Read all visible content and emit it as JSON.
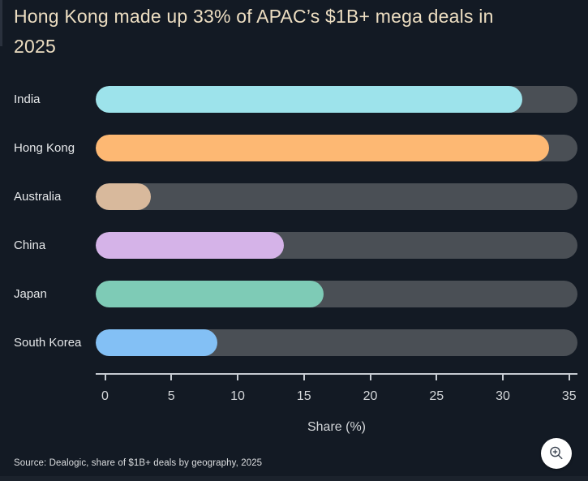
{
  "page": {
    "background": "#131a24",
    "title": "Hong Kong made up 33% of APAC’s $1B+ mega deals in 2025",
    "title_lines": [
      "Hong Kong made up 33% of APAC’s $1B+ mega deals in",
      "2025"
    ],
    "title_color": "#ecddc1",
    "source": "Source: Dealogic, share of $1B+ deals by geography, 2025"
  },
  "chart_data": {
    "type": "bar",
    "orientation": "horizontal",
    "title": "Hong Kong made up 33% of APAC’s $1B+ mega deals in 2025",
    "categories": [
      "India",
      "Hong Kong",
      "Australia",
      "China",
      "Japan",
      "South Korea"
    ],
    "values": [
      31,
      33,
      3,
      13,
      16,
      8
    ],
    "bar_colors": [
      "#9de3eb",
      "#fdb873",
      "#d8b99c",
      "#d5b3e8",
      "#7ecbb6",
      "#83c0f5"
    ],
    "track_color": "#4a4f55",
    "xlabel": "Share (%)",
    "xticks": [
      0,
      5,
      10,
      15,
      20,
      25,
      30,
      35
    ],
    "xlim": [
      0,
      35.5
    ],
    "grid": false,
    "legend": "none",
    "source": "Source: Dealogic, share of $1B+ deals by geography, 2025"
  },
  "controls": {
    "zoom_button": "zoom-in"
  }
}
